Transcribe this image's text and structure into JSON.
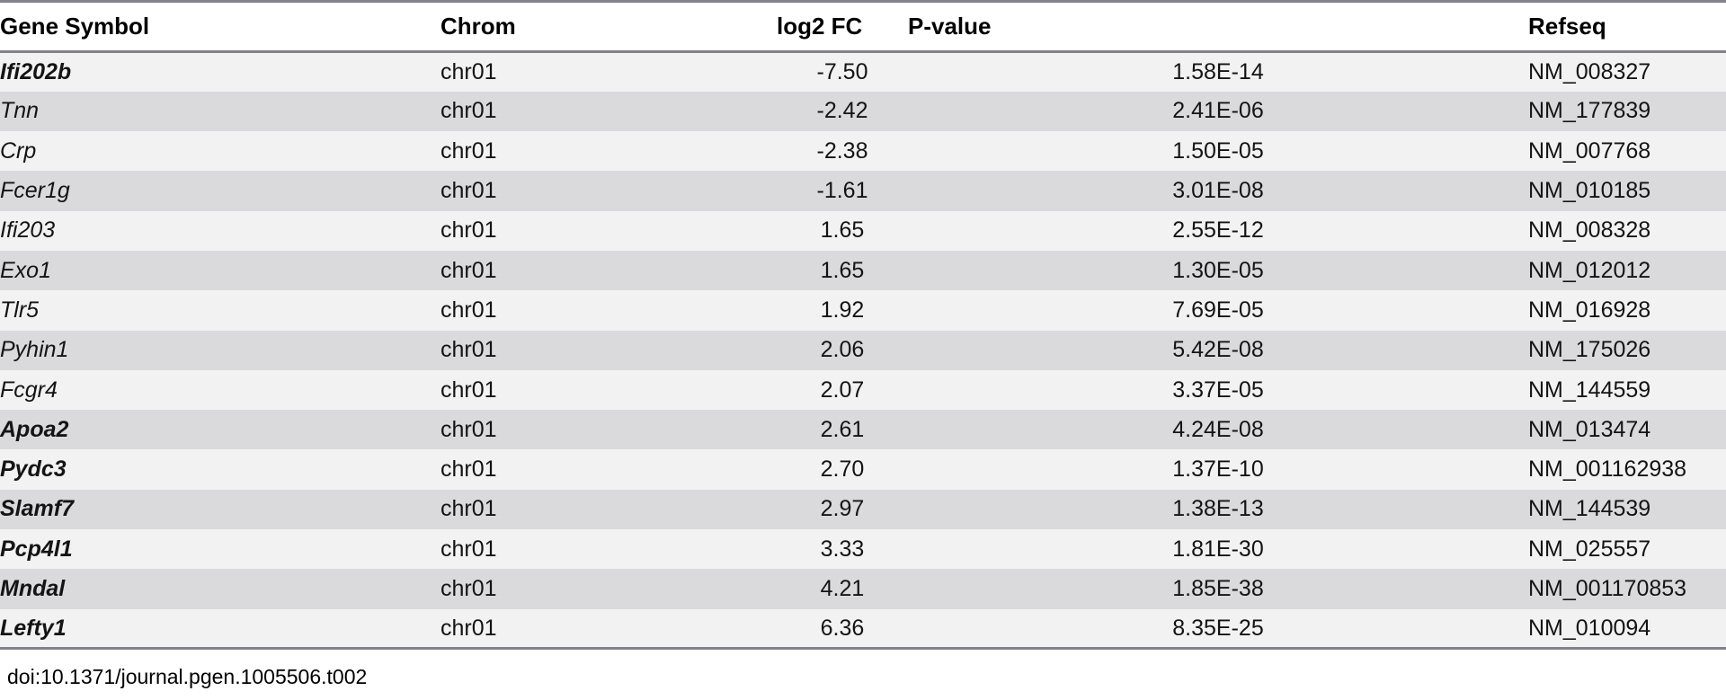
{
  "table": {
    "columns": [
      {
        "key": "gene",
        "label": "Gene Symbol"
      },
      {
        "key": "chrom",
        "label": "Chrom"
      },
      {
        "key": "log2fc",
        "label": "log2 FC"
      },
      {
        "key": "pvalue",
        "label": "P-value"
      },
      {
        "key": "refseq",
        "label": "Refseq"
      }
    ],
    "rows": [
      {
        "gene": "Ifi202b",
        "chrom": "chr01",
        "log2fc": "-7.50",
        "pvalue": "1.58E-14",
        "refseq": "NM_008327",
        "bold": true
      },
      {
        "gene": "Tnn",
        "chrom": "chr01",
        "log2fc": "-2.42",
        "pvalue": "2.41E-06",
        "refseq": "NM_177839",
        "bold": false
      },
      {
        "gene": "Crp",
        "chrom": "chr01",
        "log2fc": "-2.38",
        "pvalue": "1.50E-05",
        "refseq": "NM_007768",
        "bold": false
      },
      {
        "gene": "Fcer1g",
        "chrom": "chr01",
        "log2fc": "-1.61",
        "pvalue": "3.01E-08",
        "refseq": "NM_010185",
        "bold": false
      },
      {
        "gene": "Ifi203",
        "chrom": "chr01",
        "log2fc": "1.65",
        "pvalue": "2.55E-12",
        "refseq": "NM_008328",
        "bold": false
      },
      {
        "gene": "Exo1",
        "chrom": "chr01",
        "log2fc": "1.65",
        "pvalue": "1.30E-05",
        "refseq": "NM_012012",
        "bold": false
      },
      {
        "gene": "Tlr5",
        "chrom": "chr01",
        "log2fc": "1.92",
        "pvalue": "7.69E-05",
        "refseq": "NM_016928",
        "bold": false
      },
      {
        "gene": "Pyhin1",
        "chrom": "chr01",
        "log2fc": "2.06",
        "pvalue": "5.42E-08",
        "refseq": "NM_175026",
        "bold": false
      },
      {
        "gene": "Fcgr4",
        "chrom": "chr01",
        "log2fc": "2.07",
        "pvalue": "3.37E-05",
        "refseq": "NM_144559",
        "bold": false
      },
      {
        "gene": "Apoa2",
        "chrom": "chr01",
        "log2fc": "2.61",
        "pvalue": "4.24E-08",
        "refseq": "NM_013474",
        "bold": true
      },
      {
        "gene": "Pydc3",
        "chrom": "chr01",
        "log2fc": "2.70",
        "pvalue": "1.37E-10",
        "refseq": "NM_001162938",
        "bold": true
      },
      {
        "gene": "Slamf7",
        "chrom": "chr01",
        "log2fc": "2.97",
        "pvalue": "1.38E-13",
        "refseq": "NM_144539",
        "bold": true
      },
      {
        "gene": "Pcp4l1",
        "chrom": "chr01",
        "log2fc": "3.33",
        "pvalue": "1.81E-30",
        "refseq": "NM_025557",
        "bold": true
      },
      {
        "gene": "Mndal",
        "chrom": "chr01",
        "log2fc": "4.21",
        "pvalue": "1.85E-38",
        "refseq": "NM_001170853",
        "bold": true
      },
      {
        "gene": "Lefty1",
        "chrom": "chr01",
        "log2fc": "6.36",
        "pvalue": "8.35E-25",
        "refseq": "NM_010094",
        "bold": true
      }
    ]
  },
  "footer": {
    "doi": "doi:10.1371/journal.pgen.1005506.t002"
  },
  "colors": {
    "stripe_light": "#f2f2f3",
    "stripe_dark": "#dadadd",
    "rule_gray": "#82828a"
  }
}
